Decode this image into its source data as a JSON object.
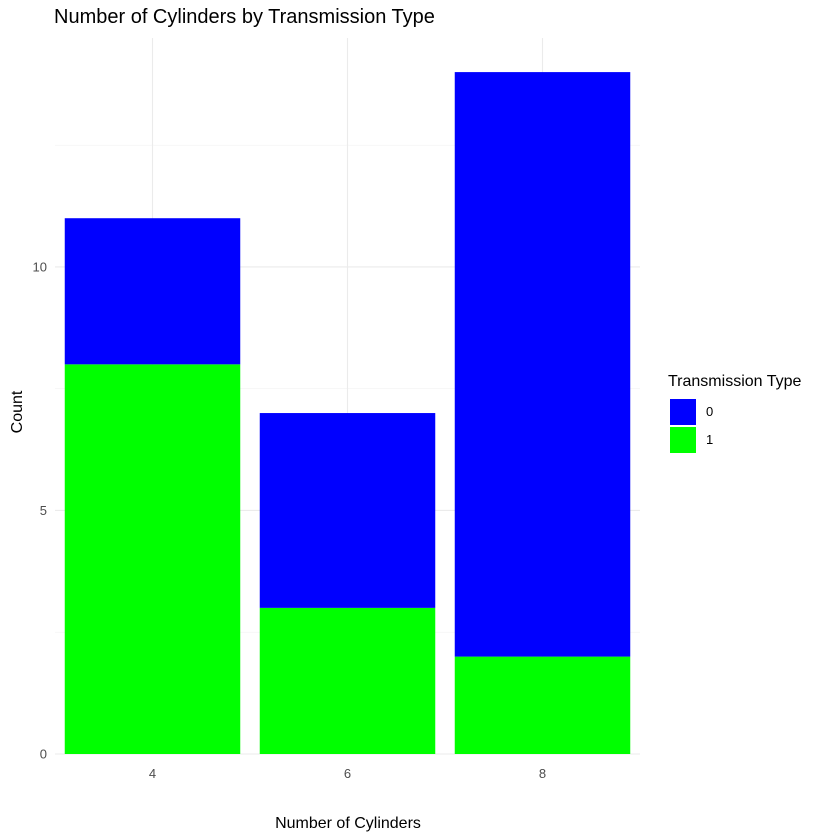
{
  "chart_data": {
    "type": "bar",
    "stacked": true,
    "title": "Number of Cylinders by Transmission Type",
    "xlabel": "Number of Cylinders",
    "ylabel": "Count",
    "categories": [
      "4",
      "6",
      "8"
    ],
    "series": [
      {
        "name": "0",
        "values": [
          3,
          4,
          12
        ],
        "color": "#0000ff"
      },
      {
        "name": "1",
        "values": [
          8,
          3,
          2
        ],
        "color": "#00ff00"
      }
    ],
    "yticks": [
      0,
      5,
      10
    ],
    "ylim": [
      0,
      14.7
    ],
    "grid": true,
    "legend": {
      "title": "Transmission Type",
      "position": "right"
    }
  }
}
